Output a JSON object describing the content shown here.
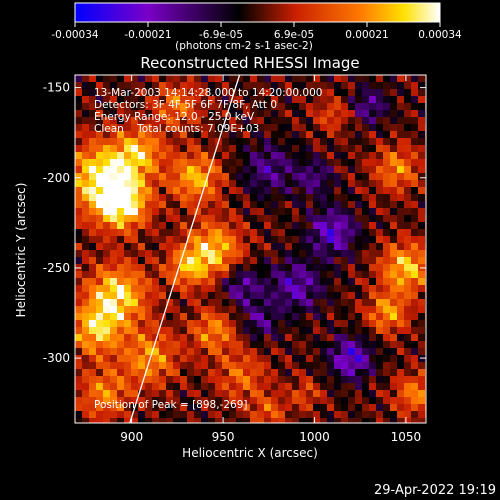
{
  "chart_data": {
    "type": "heatmap",
    "title": "Reconstructed RHESSI Image",
    "xlabel": "Heliocentric X (arcsec)",
    "ylabel": "Heliocentric Y (arcsec)",
    "xlim": [
      869,
      1061
    ],
    "ylim": [
      -336,
      -143
    ],
    "x_ticks": [
      "900",
      "950",
      "1000",
      "1050"
    ],
    "x_tick_values": [
      900,
      950,
      1000,
      1050
    ],
    "y_ticks": [
      "-150",
      "-200",
      "-250",
      "-300"
    ],
    "y_tick_values": [
      -150,
      -200,
      -250,
      -300
    ],
    "colorbar": {
      "range": [
        -0.00034,
        0.00034
      ],
      "tick_labels": [
        "-0.00034",
        "-0.00021",
        "-6.9e-05",
        "6.9e-05",
        "0.00021",
        "0.00034"
      ],
      "unit_label": "(photons cm-2 s-1 asec-2)",
      "colors": [
        "#0000ff",
        "#7a00c8",
        "#000000",
        "#c81e00",
        "#ff7800",
        "#ffe000",
        "#ffffff"
      ]
    },
    "info_lines": [
      "13-Mar-2003 14:14:28.000 to 14:20:00.000",
      "Detectors: 3F 4F 5F 6F 7F 8F, Att 0",
      "Energy Range: 12.0 - 25.0 keV",
      "Clean    Total counts: 7.09E+03"
    ],
    "peak_label": "Position of Peak = [898,-269]",
    "peak_position": [
      898,
      -269
    ],
    "limb_line": [
      [
        899,
        -336
      ],
      [
        959,
        -143
      ]
    ],
    "field_components": [
      {
        "x": 885,
        "y": -200,
        "s": 14,
        "a": 0.95
      },
      {
        "x": 895,
        "y": -215,
        "s": 10,
        "a": 0.8
      },
      {
        "x": 905,
        "y": -185,
        "s": 9,
        "a": 0.6
      },
      {
        "x": 892,
        "y": -265,
        "s": 12,
        "a": 0.85
      },
      {
        "x": 880,
        "y": -285,
        "s": 10,
        "a": 0.7
      },
      {
        "x": 910,
        "y": -300,
        "s": 11,
        "a": 0.6
      },
      {
        "x": 885,
        "y": -320,
        "s": 10,
        "a": 0.55
      },
      {
        "x": 935,
        "y": -200,
        "s": 10,
        "a": 0.7
      },
      {
        "x": 945,
        "y": -240,
        "s": 11,
        "a": 0.75
      },
      {
        "x": 930,
        "y": -250,
        "s": 8,
        "a": 0.55
      },
      {
        "x": 945,
        "y": -285,
        "s": 9,
        "a": 0.55
      },
      {
        "x": 925,
        "y": -160,
        "s": 9,
        "a": 0.5
      },
      {
        "x": 960,
        "y": -310,
        "s": 10,
        "a": 0.45
      },
      {
        "x": 975,
        "y": -330,
        "s": 7,
        "a": 0.4
      },
      {
        "x": 1045,
        "y": -195,
        "s": 9,
        "a": 0.55
      },
      {
        "x": 1050,
        "y": -250,
        "s": 10,
        "a": 0.75
      },
      {
        "x": 1040,
        "y": -275,
        "s": 8,
        "a": 0.6
      },
      {
        "x": 1055,
        "y": -320,
        "s": 8,
        "a": 0.55
      },
      {
        "x": 1010,
        "y": -165,
        "s": 7,
        "a": 0.35
      },
      {
        "x": 995,
        "y": -320,
        "s": 6,
        "a": 0.35
      },
      {
        "x": 1010,
        "y": -230,
        "s": 9,
        "a": -0.65
      },
      {
        "x": 990,
        "y": -260,
        "s": 10,
        "a": -0.55
      },
      {
        "x": 1020,
        "y": -300,
        "s": 8,
        "a": -0.7
      },
      {
        "x": 975,
        "y": -195,
        "s": 10,
        "a": -0.45
      },
      {
        "x": 960,
        "y": -260,
        "s": 8,
        "a": -0.5
      },
      {
        "x": 1030,
        "y": -160,
        "s": 7,
        "a": -0.45
      },
      {
        "x": 970,
        "y": -280,
        "s": 7,
        "a": -0.4
      },
      {
        "x": 1000,
        "y": -200,
        "s": 7,
        "a": -0.4
      }
    ]
  },
  "footer": {
    "date": "29-Apr-2022 19:19"
  }
}
